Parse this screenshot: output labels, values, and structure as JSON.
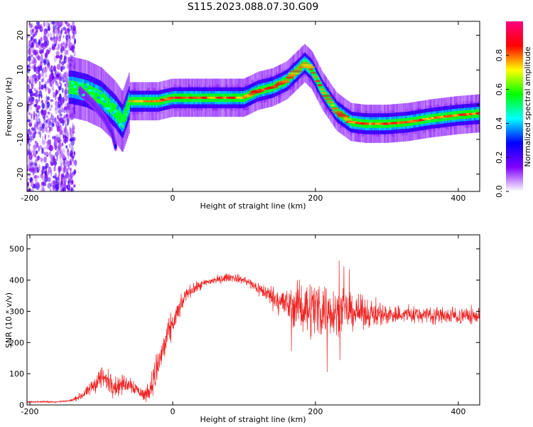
{
  "title": "S115.2023.088.07.30.G09",
  "chart_data": [
    {
      "type": "heatmap",
      "xlabel": "Height of straight line (km)",
      "ylabel": "Frequency (Hz)",
      "xlim": [
        -204,
        430
      ],
      "ylim": [
        -25,
        24
      ],
      "xticks": [
        -200,
        0,
        200,
        400
      ],
      "yticks": [
        -20,
        -10,
        0,
        10,
        20
      ],
      "colorbar": {
        "label": "Normalized spectral amplitude",
        "range": [
          0.0,
          1.0
        ],
        "ticks": [
          0.0,
          0.2,
          0.4,
          0.6,
          0.8
        ],
        "tick_labels": [
          "0.0",
          "0.2",
          "0.4",
          "0.6",
          "0.8"
        ],
        "colormap": [
          "#ffffff",
          "#8000ff",
          "#0000ff",
          "#00ffff",
          "#00ff00",
          "#ffff00",
          "#ff0000",
          "#ff0080"
        ]
      },
      "ridge": {
        "x": [
          -140,
          -120,
          -100,
          -80,
          -70,
          -60,
          -40,
          -20,
          0,
          40,
          80,
          100,
          120,
          140,
          160,
          175,
          185,
          195,
          210,
          230,
          250,
          270,
          300,
          330,
          360,
          400,
          430
        ],
        "y": [
          5,
          4,
          2,
          -2,
          -5,
          1,
          1,
          1,
          2,
          2,
          2,
          2,
          4,
          5,
          7,
          10,
          12,
          10,
          4,
          -2,
          -5,
          -5.5,
          -5.5,
          -5,
          -4,
          -3,
          -2.5
        ]
      },
      "branch": {
        "x": [
          -130,
          -110,
          -95,
          -85,
          -80
        ],
        "y": [
          4,
          0,
          -4,
          -8,
          -12
        ]
      }
    },
    {
      "type": "line",
      "xlabel": "Height of straight line (km)",
      "ylabel": "SNR (10 * v/v)",
      "xlim": [
        -204,
        430
      ],
      "ylim": [
        0,
        545
      ],
      "xticks": [
        -200,
        0,
        200,
        400
      ],
      "yticks": [
        0,
        100,
        200,
        300,
        400,
        500
      ],
      "color": "#ee2222",
      "envelope": {
        "x": [
          -204,
          -160,
          -140,
          -120,
          -100,
          -80,
          -60,
          -40,
          -30,
          -20,
          -10,
          0,
          20,
          50,
          80,
          100,
          130,
          160,
          200,
          240,
          300,
          350,
          400,
          430
        ],
        "mean": [
          10,
          10,
          15,
          40,
          90,
          60,
          70,
          30,
          60,
          130,
          200,
          260,
          360,
          395,
          410,
          400,
          360,
          320,
          310,
          300,
          290,
          290,
          285,
          285
        ],
        "spread": [
          4,
          4,
          8,
          25,
          60,
          50,
          40,
          30,
          60,
          90,
          80,
          60,
          30,
          20,
          20,
          20,
          40,
          80,
          150,
          90,
          50,
          40,
          40,
          40
        ]
      }
    }
  ]
}
